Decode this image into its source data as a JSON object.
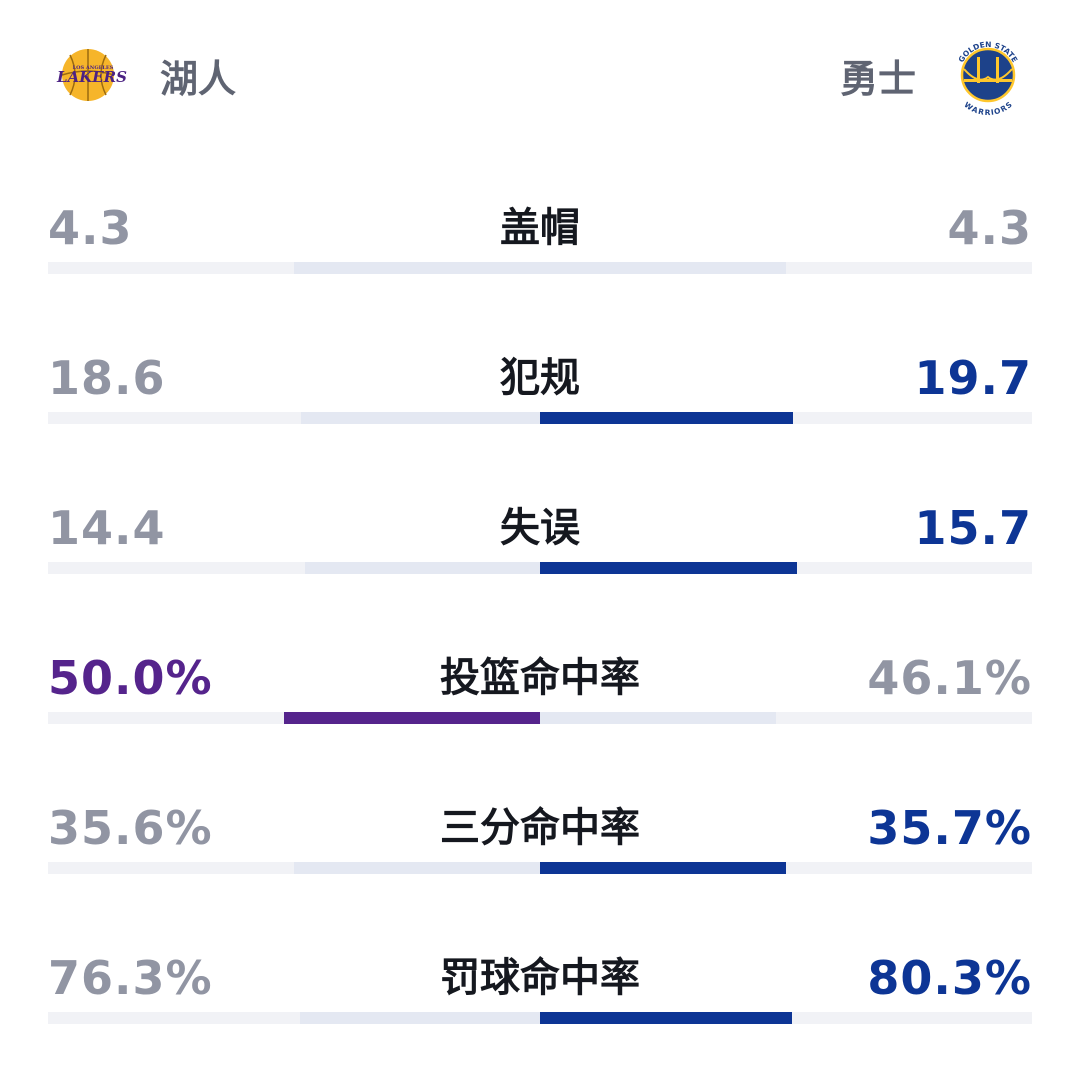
{
  "teams": {
    "home": {
      "name": "湖人",
      "logo_icon": "lakers-logo-icon",
      "logo_text": "LAKERS",
      "logo_subtext": "LOS ANGELES",
      "color": "#55248c"
    },
    "away": {
      "name": "勇士",
      "logo_icon": "warriors-logo-icon",
      "logo_text_top": "GOLDEN STATE",
      "logo_text_bottom": "WARRIORS",
      "color": "#0d3595"
    }
  },
  "neutral_color": "#9195a3",
  "stats": [
    {
      "label": "盖帽",
      "home": "4.3",
      "away": "4.3",
      "home_num": 4.3,
      "away_num": 4.3,
      "leader": "none"
    },
    {
      "label": "犯规",
      "home": "18.6",
      "away": "19.7",
      "home_num": 18.6,
      "away_num": 19.7,
      "leader": "away"
    },
    {
      "label": "失误",
      "home": "14.4",
      "away": "15.7",
      "home_num": 14.4,
      "away_num": 15.7,
      "leader": "away"
    },
    {
      "label": "投篮命中率",
      "home": "50.0%",
      "away": "46.1%",
      "home_num": 50.0,
      "away_num": 46.1,
      "leader": "home"
    },
    {
      "label": "三分命中率",
      "home": "35.6%",
      "away": "35.7%",
      "home_num": 35.6,
      "away_num": 35.7,
      "leader": "away"
    },
    {
      "label": "罚球命中率",
      "home": "76.3%",
      "away": "80.3%",
      "home_num": 76.3,
      "away_num": 80.3,
      "leader": "away"
    }
  ]
}
